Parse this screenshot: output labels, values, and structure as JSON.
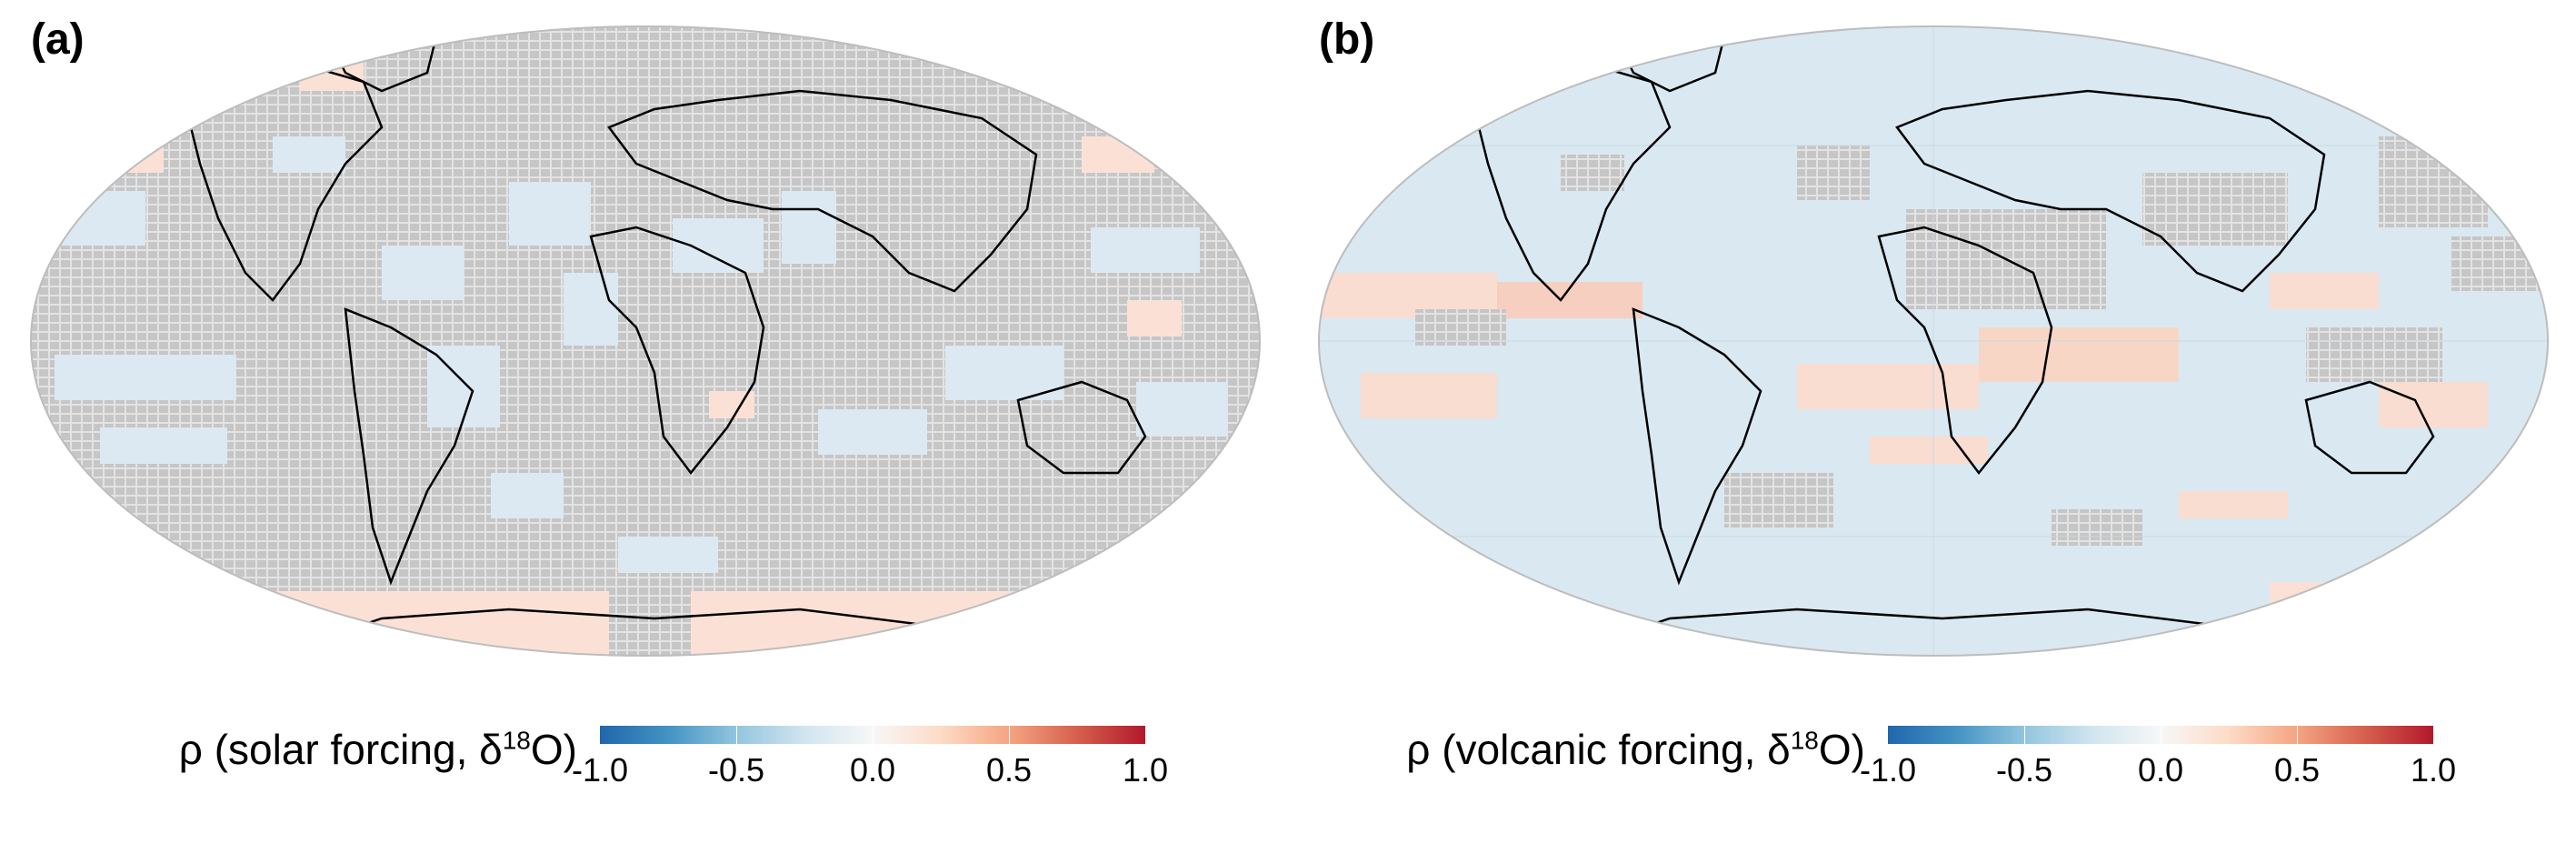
{
  "panels": [
    {
      "label": "(a)",
      "colorbar_title_prefix": "ρ (solar forcing, δ",
      "colorbar_title_sup": "18",
      "colorbar_title_suffix": "O)",
      "ticks": [
        "-1.0",
        "-0.5",
        "0.0",
        "0.5",
        "1.0"
      ]
    },
    {
      "label": "(b)",
      "colorbar_title_prefix": "ρ (volcanic forcing, δ",
      "colorbar_title_sup": "18",
      "colorbar_title_suffix": "O)",
      "ticks": [
        "-1.0",
        "-0.5",
        "0.0",
        "0.5",
        "1.0"
      ]
    }
  ],
  "colors": {
    "background_gray": "#c8c8c8",
    "hatch": "#e6e6e6",
    "coast": "#000000",
    "light_blue": "#d9e9f4",
    "light_red": "#fbe0d4",
    "cbar_low": "#2166ac",
    "cbar_mid": "#f7f7f7",
    "cbar_high": "#b2182b"
  },
  "colorbar_range": [
    -1.0,
    1.0
  ]
}
